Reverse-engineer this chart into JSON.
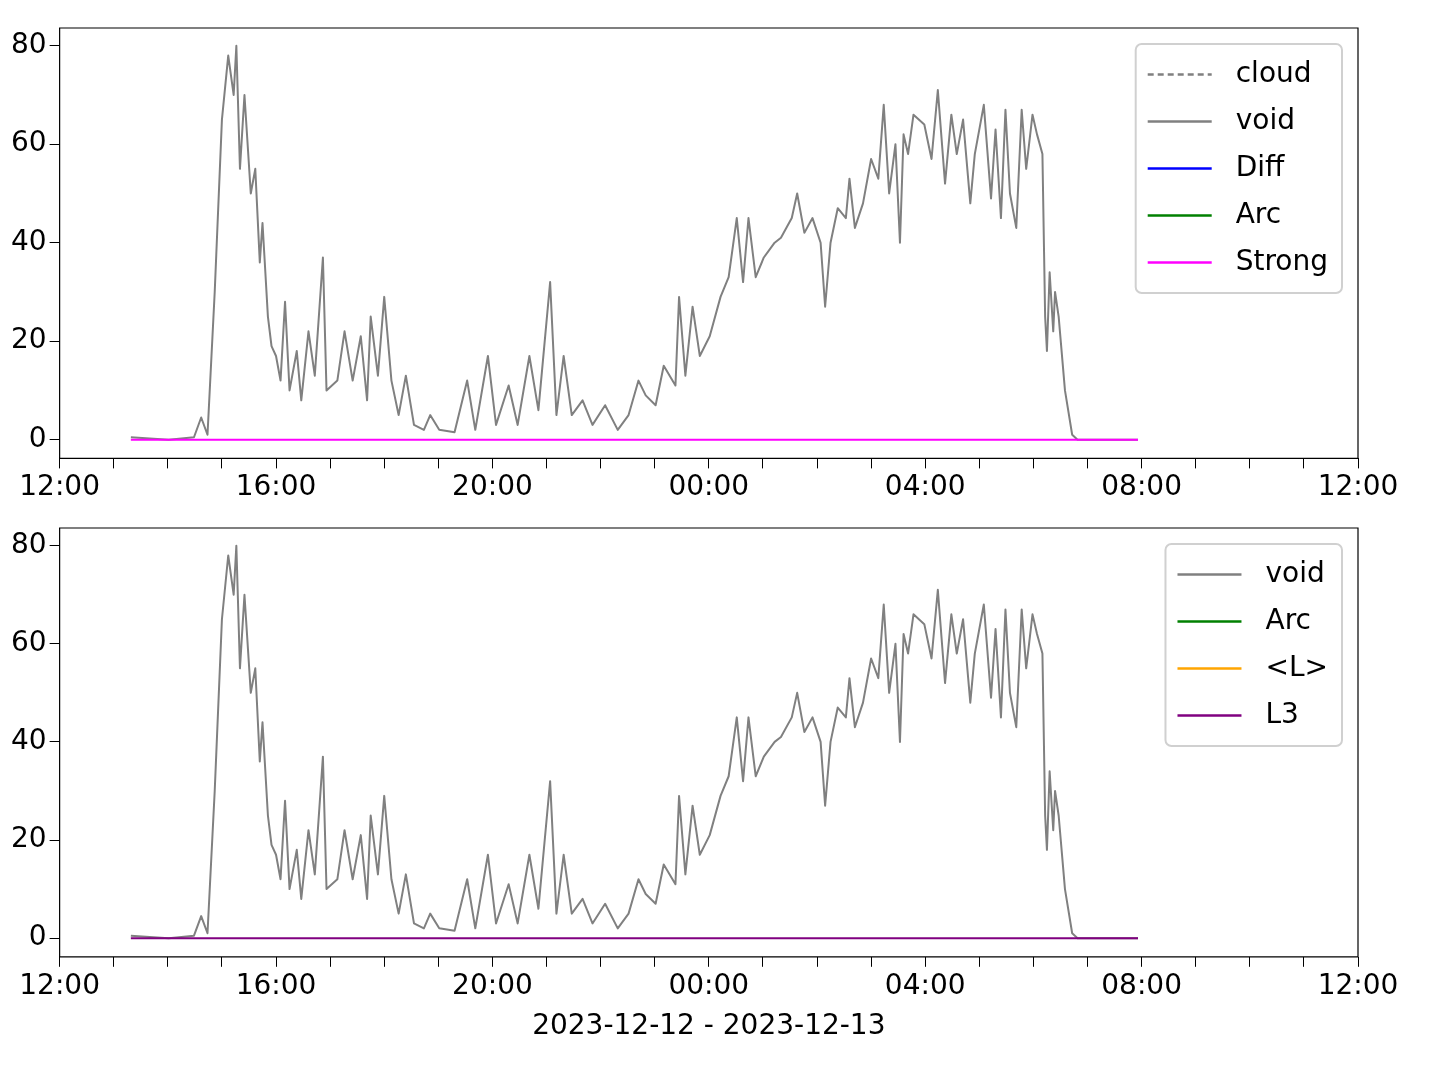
{
  "chart_data": [
    {
      "type": "line",
      "legend": "top right",
      "xlim": [
        "2023-12-12T12:00",
        "2023-12-13T12:00"
      ],
      "ylim": [
        -3.8,
        83.6
      ],
      "xticks": [
        {
          "value": "2023-12-12T12:00",
          "label": "12:00"
        },
        {
          "value": "2023-12-12T13:00",
          "label": null
        },
        {
          "value": "2023-12-12T14:00",
          "label": null
        },
        {
          "value": "2023-12-12T15:00",
          "label": null
        },
        {
          "value": "2023-12-12T16:00",
          "label": "16:00"
        },
        {
          "value": "2023-12-12T17:00",
          "label": null
        },
        {
          "value": "2023-12-12T18:00",
          "label": null
        },
        {
          "value": "2023-12-12T19:00",
          "label": null
        },
        {
          "value": "2023-12-12T20:00",
          "label": "20:00"
        },
        {
          "value": "2023-12-12T21:00",
          "label": null
        },
        {
          "value": "2023-12-12T22:00",
          "label": null
        },
        {
          "value": "2023-12-12T23:00",
          "label": null
        },
        {
          "value": "2023-12-13T00:00",
          "label": "00:00"
        },
        {
          "value": "2023-12-13T01:00",
          "label": null
        },
        {
          "value": "2023-12-13T02:00",
          "label": null
        },
        {
          "value": "2023-12-13T03:00",
          "label": null
        },
        {
          "value": "2023-12-13T04:00",
          "label": "04:00"
        },
        {
          "value": "2023-12-13T05:00",
          "label": null
        },
        {
          "value": "2023-12-13T06:00",
          "label": null
        },
        {
          "value": "2023-12-13T07:00",
          "label": null
        },
        {
          "value": "2023-12-13T08:00",
          "label": "08:00"
        },
        {
          "value": "2023-12-13T09:00",
          "label": null
        },
        {
          "value": "2023-12-13T10:00",
          "label": null
        },
        {
          "value": "2023-12-13T11:00",
          "label": null
        },
        {
          "value": "2023-12-13T12:00",
          "label": "12:00"
        }
      ],
      "yticks": [
        0,
        20,
        40,
        60,
        80
      ],
      "x": [
        "2023-12-12T13:19",
        "2023-12-12T14:01",
        "2023-12-12T14:29",
        "2023-12-12T14:37",
        "2023-12-12T14:44",
        "2023-12-12T14:52",
        "2023-12-12T15:00",
        "2023-12-12T15:07",
        "2023-12-12T15:13",
        "2023-12-12T15:16",
        "2023-12-12T15:20",
        "2023-12-12T15:25",
        "2023-12-12T15:32",
        "2023-12-12T15:37",
        "2023-12-12T15:42",
        "2023-12-12T15:45",
        "2023-12-12T15:51",
        "2023-12-12T15:55",
        "2023-12-12T16:00",
        "2023-12-12T16:05",
        "2023-12-12T16:10",
        "2023-12-12T16:15",
        "2023-12-12T16:23",
        "2023-12-12T16:28",
        "2023-12-12T16:36",
        "2023-12-12T16:43",
        "2023-12-12T16:52",
        "2023-12-12T16:56",
        "2023-12-12T17:08",
        "2023-12-12T17:16",
        "2023-12-12T17:25",
        "2023-12-12T17:34",
        "2023-12-12T17:41",
        "2023-12-12T17:45",
        "2023-12-12T17:53",
        "2023-12-12T18:00",
        "2023-12-12T18:08",
        "2023-12-12T18:16",
        "2023-12-12T18:24",
        "2023-12-12T18:33",
        "2023-12-12T18:44",
        "2023-12-12T18:51",
        "2023-12-12T19:01",
        "2023-12-12T19:18",
        "2023-12-12T19:32",
        "2023-12-12T19:41",
        "2023-12-12T19:55",
        "2023-12-12T20:04",
        "2023-12-12T20:18",
        "2023-12-12T20:28",
        "2023-12-12T20:41",
        "2023-12-12T20:51",
        "2023-12-12T21:04",
        "2023-12-12T21:11",
        "2023-12-12T21:19",
        "2023-12-12T21:28",
        "2023-12-12T21:40",
        "2023-12-12T21:51",
        "2023-12-12T22:05",
        "2023-12-12T22:19",
        "2023-12-12T22:31",
        "2023-12-12T22:42",
        "2023-12-12T22:50",
        "2023-12-12T23:01",
        "2023-12-12T23:10",
        "2023-12-12T23:23",
        "2023-12-12T23:27",
        "2023-12-12T23:34",
        "2023-12-12T23:42",
        "2023-12-12T23:50",
        "2023-12-13T00:01",
        "2023-12-13T00:13",
        "2023-12-13T00:22",
        "2023-12-13T00:31",
        "2023-12-13T00:38",
        "2023-12-13T00:44",
        "2023-12-13T00:52",
        "2023-12-13T01:01",
        "2023-12-13T01:13",
        "2023-12-13T01:20",
        "2023-12-13T01:32",
        "2023-12-13T01:38",
        "2023-12-13T01:46",
        "2023-12-13T01:55",
        "2023-12-13T02:04",
        "2023-12-13T02:09",
        "2023-12-13T02:15",
        "2023-12-13T02:23",
        "2023-12-13T02:32",
        "2023-12-13T02:36",
        "2023-12-13T02:42",
        "2023-12-13T02:51",
        "2023-12-13T03:00",
        "2023-12-13T03:08",
        "2023-12-13T03:14",
        "2023-12-13T03:20",
        "2023-12-13T03:27",
        "2023-12-13T03:32",
        "2023-12-13T03:36",
        "2023-12-13T03:41",
        "2023-12-13T03:47",
        "2023-12-13T03:59",
        "2023-12-13T04:07",
        "2023-12-13T04:14",
        "2023-12-13T04:22",
        "2023-12-13T04:29",
        "2023-12-13T04:35",
        "2023-12-13T04:42",
        "2023-12-13T04:50",
        "2023-12-13T04:55",
        "2023-12-13T05:05",
        "2023-12-13T05:13",
        "2023-12-13T05:18",
        "2023-12-13T05:24",
        "2023-12-13T05:29",
        "2023-12-13T05:34",
        "2023-12-13T05:41",
        "2023-12-13T05:47",
        "2023-12-13T05:52",
        "2023-12-13T05:59",
        "2023-12-13T06:04",
        "2023-12-13T06:10",
        "2023-12-13T06:13",
        "2023-12-13T06:15",
        "2023-12-13T06:18",
        "2023-12-13T06:22",
        "2023-12-13T06:24",
        "2023-12-13T06:28",
        "2023-12-13T06:35",
        "2023-12-13T06:43",
        "2023-12-13T06:49",
        "2023-12-13T07:56"
      ],
      "series": [
        {
          "name": "cloud",
          "color": "#808080",
          "line_style": "dashed",
          "values": [
            null,
            null,
            null,
            null,
            null,
            null,
            null,
            null,
            null,
            null,
            null,
            null,
            null,
            null,
            null,
            null,
            null,
            null,
            null,
            null,
            null,
            null,
            null,
            null,
            null,
            null,
            null,
            null,
            null,
            null,
            null,
            null,
            null,
            null,
            null,
            null,
            null,
            null,
            null,
            null,
            null,
            null,
            null,
            null,
            null,
            null,
            null,
            null,
            null,
            null,
            null,
            null,
            null,
            null,
            null,
            null,
            null,
            null,
            null,
            null,
            null,
            null,
            null,
            null,
            null,
            null,
            null,
            null,
            null,
            null,
            null,
            null,
            null,
            null,
            null,
            null,
            null,
            null,
            null,
            null,
            null,
            null,
            null,
            null,
            null,
            null,
            null,
            null,
            null,
            null,
            null,
            null,
            null,
            null,
            null,
            null,
            null,
            null,
            null,
            null,
            null,
            null,
            null,
            null,
            null,
            null,
            null,
            null,
            null,
            null,
            null,
            null,
            null,
            null,
            null,
            null,
            null,
            null,
            null,
            null,
            null,
            null,
            null,
            null,
            null,
            null,
            null,
            null,
            null,
            null,
            null,
            null
          ]
        },
        {
          "name": "void",
          "color": "#808080",
          "values": [
            0.5,
            0,
            0.5,
            4.5,
            1,
            30,
            65,
            78,
            70,
            80,
            55,
            70,
            50,
            55,
            36,
            44,
            25,
            19,
            17,
            12,
            28,
            10,
            18,
            8,
            22,
            13,
            37,
            10,
            12,
            22,
            12,
            21,
            8,
            25,
            13,
            29,
            12,
            5,
            13,
            3,
            2,
            5,
            2,
            1.5,
            12,
            2,
            17,
            3,
            11,
            3,
            17,
            6,
            32,
            5,
            17,
            5,
            8,
            3,
            7,
            2,
            5,
            12,
            9,
            7,
            15,
            11,
            29,
            13,
            27,
            17,
            21,
            29,
            33,
            45,
            32,
            45,
            33,
            37,
            40,
            41,
            45,
            50,
            42,
            45,
            40,
            27,
            40,
            47,
            45,
            53,
            43,
            48,
            57,
            53,
            68,
            50,
            60,
            40,
            62,
            58,
            66,
            64,
            57,
            71,
            52,
            66,
            58,
            65,
            48,
            58,
            68,
            49,
            63,
            45,
            67,
            50,
            43,
            67,
            55,
            66,
            62,
            58,
            25,
            18,
            34,
            22,
            30,
            25,
            10,
            1,
            0,
            0
          ]
        },
        {
          "name": "Diff",
          "color": "#0000ff",
          "values": [
            null,
            null,
            null,
            null,
            null,
            null,
            null,
            null,
            null,
            null,
            null,
            null,
            null,
            null,
            null,
            null,
            null,
            null,
            null,
            null,
            null,
            null,
            null,
            null,
            null,
            null,
            null,
            null,
            null,
            null,
            null,
            null,
            null,
            null,
            null,
            null,
            null,
            null,
            null,
            null,
            null,
            null,
            null,
            null,
            null,
            null,
            null,
            null,
            null,
            null,
            null,
            null,
            null,
            null,
            null,
            null,
            null,
            null,
            null,
            null,
            null,
            null,
            null,
            null,
            null,
            null,
            null,
            null,
            null,
            null,
            null,
            null,
            null,
            null,
            null,
            null,
            null,
            null,
            null,
            null,
            null,
            null,
            null,
            null,
            null,
            null,
            null,
            null,
            null,
            null,
            null,
            null,
            null,
            null,
            null,
            null,
            null,
            null,
            null,
            null,
            null,
            null,
            null,
            null,
            null,
            null,
            null,
            null,
            null,
            null,
            null,
            null,
            null,
            null,
            null,
            null,
            null,
            null,
            null,
            null,
            null,
            null,
            null,
            null,
            null,
            null,
            null,
            null,
            null,
            null,
            null,
            null
          ]
        },
        {
          "name": "Arc",
          "color": "#008000",
          "values": [
            null,
            null,
            null,
            null,
            null,
            null,
            null,
            null,
            null,
            null,
            null,
            null,
            null,
            null,
            null,
            null,
            null,
            null,
            null,
            null,
            null,
            null,
            null,
            null,
            null,
            null,
            null,
            null,
            null,
            null,
            null,
            null,
            null,
            null,
            null,
            null,
            null,
            null,
            null,
            null,
            null,
            null,
            null,
            null,
            null,
            null,
            null,
            null,
            null,
            null,
            null,
            null,
            null,
            null,
            null,
            null,
            null,
            null,
            null,
            null,
            null,
            null,
            null,
            null,
            null,
            null,
            null,
            null,
            null,
            null,
            null,
            null,
            null,
            null,
            null,
            null,
            null,
            null,
            null,
            null,
            null,
            null,
            null,
            null,
            null,
            null,
            null,
            null,
            null,
            null,
            null,
            null,
            null,
            null,
            null,
            null,
            null,
            null,
            null,
            null,
            null,
            null,
            null,
            null,
            null,
            null,
            null,
            null,
            null,
            null,
            null,
            null,
            null,
            null,
            null,
            null,
            null,
            null,
            null,
            null,
            null,
            null,
            null,
            null,
            null,
            null,
            null,
            null,
            null,
            null,
            null,
            null
          ]
        },
        {
          "name": "Strong",
          "color": "#ff00ff",
          "x": [
            "2023-12-12T13:19",
            "2023-12-13T07:56"
          ],
          "values": [
            0,
            0
          ]
        }
      ]
    },
    {
      "type": "line",
      "legend": "top right",
      "xlabel": "2023-12-12 - 2023-12-13",
      "xlim": [
        "2023-12-12T12:00",
        "2023-12-13T12:00"
      ],
      "ylim": [
        -3.8,
        83.6
      ],
      "xticks": [
        {
          "value": "2023-12-12T12:00",
          "label": "12:00"
        },
        {
          "value": "2023-12-12T13:00",
          "label": null
        },
        {
          "value": "2023-12-12T14:00",
          "label": null
        },
        {
          "value": "2023-12-12T15:00",
          "label": null
        },
        {
          "value": "2023-12-12T16:00",
          "label": "16:00"
        },
        {
          "value": "2023-12-12T17:00",
          "label": null
        },
        {
          "value": "2023-12-12T18:00",
          "label": null
        },
        {
          "value": "2023-12-12T19:00",
          "label": null
        },
        {
          "value": "2023-12-12T20:00",
          "label": "20:00"
        },
        {
          "value": "2023-12-12T21:00",
          "label": null
        },
        {
          "value": "2023-12-12T22:00",
          "label": null
        },
        {
          "value": "2023-12-12T23:00",
          "label": null
        },
        {
          "value": "2023-12-13T00:00",
          "label": "00:00"
        },
        {
          "value": "2023-12-13T01:00",
          "label": null
        },
        {
          "value": "2023-12-13T02:00",
          "label": null
        },
        {
          "value": "2023-12-13T03:00",
          "label": null
        },
        {
          "value": "2023-12-13T04:00",
          "label": "04:00"
        },
        {
          "value": "2023-12-13T05:00",
          "label": null
        },
        {
          "value": "2023-12-13T06:00",
          "label": null
        },
        {
          "value": "2023-12-13T07:00",
          "label": null
        },
        {
          "value": "2023-12-13T08:00",
          "label": "08:00"
        },
        {
          "value": "2023-12-13T09:00",
          "label": null
        },
        {
          "value": "2023-12-13T10:00",
          "label": null
        },
        {
          "value": "2023-12-13T11:00",
          "label": null
        },
        {
          "value": "2023-12-13T12:00",
          "label": "12:00"
        }
      ],
      "yticks": [
        0,
        20,
        40,
        60,
        80
      ],
      "x": [
        "2023-12-12T13:19",
        "2023-12-12T14:01",
        "2023-12-12T14:29",
        "2023-12-12T14:37",
        "2023-12-12T14:44",
        "2023-12-12T14:52",
        "2023-12-12T15:00",
        "2023-12-12T15:07",
        "2023-12-12T15:13",
        "2023-12-12T15:16",
        "2023-12-12T15:20",
        "2023-12-12T15:25",
        "2023-12-12T15:32",
        "2023-12-12T15:37",
        "2023-12-12T15:42",
        "2023-12-12T15:45",
        "2023-12-12T15:51",
        "2023-12-12T15:55",
        "2023-12-12T16:00",
        "2023-12-12T16:05",
        "2023-12-12T16:10",
        "2023-12-12T16:15",
        "2023-12-12T16:23",
        "2023-12-12T16:28",
        "2023-12-12T16:36",
        "2023-12-12T16:43",
        "2023-12-12T16:52",
        "2023-12-12T16:56",
        "2023-12-12T17:08",
        "2023-12-12T17:16",
        "2023-12-12T17:25",
        "2023-12-12T17:34",
        "2023-12-12T17:41",
        "2023-12-12T17:45",
        "2023-12-12T17:53",
        "2023-12-12T18:00",
        "2023-12-12T18:08",
        "2023-12-12T18:16",
        "2023-12-12T18:24",
        "2023-12-12T18:33",
        "2023-12-12T18:44",
        "2023-12-12T18:51",
        "2023-12-12T19:01",
        "2023-12-12T19:18",
        "2023-12-12T19:32",
        "2023-12-12T19:41",
        "2023-12-12T19:55",
        "2023-12-12T20:04",
        "2023-12-12T20:18",
        "2023-12-12T20:28",
        "2023-12-12T20:41",
        "2023-12-12T20:51",
        "2023-12-12T21:04",
        "2023-12-12T21:11",
        "2023-12-12T21:19",
        "2023-12-12T21:28",
        "2023-12-12T21:40",
        "2023-12-12T21:51",
        "2023-12-12T22:05",
        "2023-12-12T22:19",
        "2023-12-12T22:31",
        "2023-12-12T22:42",
        "2023-12-12T22:50",
        "2023-12-12T23:01",
        "2023-12-12T23:10",
        "2023-12-12T23:23",
        "2023-12-12T23:27",
        "2023-12-12T23:34",
        "2023-12-12T23:42",
        "2023-12-12T23:50",
        "2023-12-13T00:01",
        "2023-12-13T00:13",
        "2023-12-13T00:22",
        "2023-12-13T00:31",
        "2023-12-13T00:38",
        "2023-12-13T00:44",
        "2023-12-13T00:52",
        "2023-12-13T01:01",
        "2023-12-13T01:13",
        "2023-12-13T01:20",
        "2023-12-13T01:32",
        "2023-12-13T01:38",
        "2023-12-13T01:46",
        "2023-12-13T01:55",
        "2023-12-13T02:04",
        "2023-12-13T02:09",
        "2023-12-13T02:15",
        "2023-12-13T02:23",
        "2023-12-13T02:32",
        "2023-12-13T02:36",
        "2023-12-13T02:42",
        "2023-12-13T02:51",
        "2023-12-13T03:00",
        "2023-12-13T03:08",
        "2023-12-13T03:14",
        "2023-12-13T03:20",
        "2023-12-13T03:27",
        "2023-12-13T03:32",
        "2023-12-13T03:36",
        "2023-12-13T03:41",
        "2023-12-13T03:47",
        "2023-12-13T03:59",
        "2023-12-13T04:07",
        "2023-12-13T04:14",
        "2023-12-13T04:22",
        "2023-12-13T04:29",
        "2023-12-13T04:35",
        "2023-12-13T04:42",
        "2023-12-13T04:50",
        "2023-12-13T04:55",
        "2023-12-13T05:05",
        "2023-12-13T05:13",
        "2023-12-13T05:18",
        "2023-12-13T05:24",
        "2023-12-13T05:29",
        "2023-12-13T05:34",
        "2023-12-13T05:41",
        "2023-12-13T05:47",
        "2023-12-13T05:52",
        "2023-12-13T05:59",
        "2023-12-13T06:04",
        "2023-12-13T06:10",
        "2023-12-13T06:13",
        "2023-12-13T06:15",
        "2023-12-13T06:18",
        "2023-12-13T06:22",
        "2023-12-13T06:24",
        "2023-12-13T06:28",
        "2023-12-13T06:35",
        "2023-12-13T06:43",
        "2023-12-13T06:49",
        "2023-12-13T07:56"
      ],
      "series": [
        {
          "name": "void",
          "color": "#808080",
          "values": [
            0.5,
            0,
            0.5,
            4.5,
            1,
            30,
            65,
            78,
            70,
            80,
            55,
            70,
            50,
            55,
            36,
            44,
            25,
            19,
            17,
            12,
            28,
            10,
            18,
            8,
            22,
            13,
            37,
            10,
            12,
            22,
            12,
            21,
            8,
            25,
            13,
            29,
            12,
            5,
            13,
            3,
            2,
            5,
            2,
            1.5,
            12,
            2,
            17,
            3,
            11,
            3,
            17,
            6,
            32,
            5,
            17,
            5,
            8,
            3,
            7,
            2,
            5,
            12,
            9,
            7,
            15,
            11,
            29,
            13,
            27,
            17,
            21,
            29,
            33,
            45,
            32,
            45,
            33,
            37,
            40,
            41,
            45,
            50,
            42,
            45,
            40,
            27,
            40,
            47,
            45,
            53,
            43,
            48,
            57,
            53,
            68,
            50,
            60,
            40,
            62,
            58,
            66,
            64,
            57,
            71,
            52,
            66,
            58,
            65,
            48,
            58,
            68,
            49,
            63,
            45,
            67,
            50,
            43,
            67,
            55,
            66,
            62,
            58,
            25,
            18,
            34,
            22,
            30,
            25,
            10,
            1,
            0,
            0
          ]
        },
        {
          "name": "Arc",
          "color": "#008000",
          "values": [
            null,
            null,
            null,
            null,
            null,
            null,
            null,
            null,
            null,
            null,
            null,
            null,
            null,
            null,
            null,
            null,
            null,
            null,
            null,
            null,
            null,
            null,
            null,
            null,
            null,
            null,
            null,
            null,
            null,
            null,
            null,
            null,
            null,
            null,
            null,
            null,
            null,
            null,
            null,
            null,
            null,
            null,
            null,
            null,
            null,
            null,
            null,
            null,
            null,
            null,
            null,
            null,
            null,
            null,
            null,
            null,
            null,
            null,
            null,
            null,
            null,
            null,
            null,
            null,
            null,
            null,
            null,
            null,
            null,
            null,
            null,
            null,
            null,
            null,
            null,
            null,
            null,
            null,
            null,
            null,
            null,
            null,
            null,
            null,
            null,
            null,
            null,
            null,
            null,
            null,
            null,
            null,
            null,
            null,
            null,
            null,
            null,
            null,
            null,
            null,
            null,
            null,
            null,
            null,
            null,
            null,
            null,
            null,
            null,
            null,
            null,
            null,
            null,
            null,
            null,
            null,
            null,
            null,
            null,
            null,
            null,
            null,
            null,
            null,
            null,
            null,
            null,
            null,
            null,
            null,
            null,
            null
          ]
        },
        {
          "name": "<L>",
          "color": "#ffa500",
          "values": [
            null,
            null,
            null,
            null,
            null,
            null,
            null,
            null,
            null,
            null,
            null,
            null,
            null,
            null,
            null,
            null,
            null,
            null,
            null,
            null,
            null,
            null,
            null,
            null,
            null,
            null,
            null,
            null,
            null,
            null,
            null,
            null,
            null,
            null,
            null,
            null,
            null,
            null,
            null,
            null,
            null,
            null,
            null,
            null,
            null,
            null,
            null,
            null,
            null,
            null,
            null,
            null,
            null,
            null,
            null,
            null,
            null,
            null,
            null,
            null,
            null,
            null,
            null,
            null,
            null,
            null,
            null,
            null,
            null,
            null,
            null,
            null,
            null,
            null,
            null,
            null,
            null,
            null,
            null,
            null,
            null,
            null,
            null,
            null,
            null,
            null,
            null,
            null,
            null,
            null,
            null,
            null,
            null,
            null,
            null,
            null,
            null,
            null,
            null,
            null,
            null,
            null,
            null,
            null,
            null,
            null,
            null,
            null,
            null,
            null,
            null,
            null,
            null,
            null,
            null,
            null,
            null,
            null,
            null,
            null,
            null,
            null,
            null,
            null,
            null,
            null,
            null,
            null,
            null,
            null,
            null,
            null
          ]
        },
        {
          "name": "L3",
          "color": "#800080",
          "x": [
            "2023-12-12T13:19",
            "2023-12-13T07:56"
          ],
          "values": [
            0,
            0
          ]
        }
      ]
    }
  ]
}
